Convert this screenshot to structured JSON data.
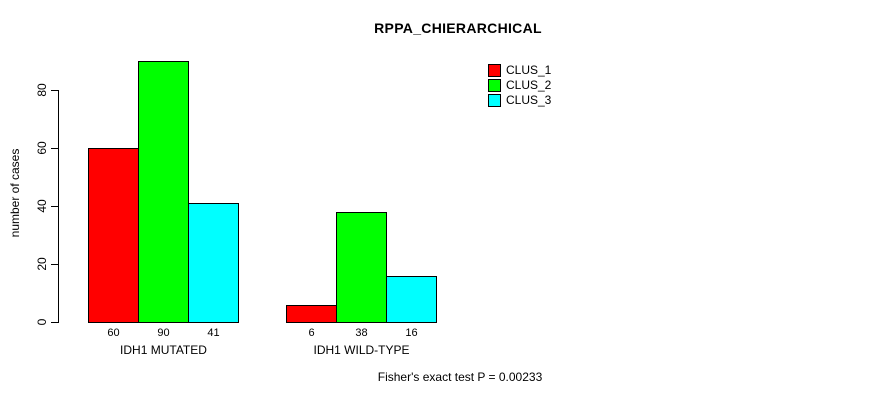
{
  "chart_data": {
    "type": "bar",
    "title": "RPPA_CHIERARCHICAL",
    "ylabel": "number of cases",
    "xlabel": "",
    "groups": [
      "IDH1 MUTATED",
      "IDH1 WILD-TYPE"
    ],
    "series": [
      {
        "name": "CLUS_1",
        "color": "#ff0000",
        "values": [
          60,
          6
        ]
      },
      {
        "name": "CLUS_2",
        "color": "#00ff00",
        "values": [
          90,
          38
        ]
      },
      {
        "name": "CLUS_3",
        "color": "#00ffff",
        "values": [
          41,
          16
        ]
      }
    ],
    "bar_value_labels_shown": true,
    "yticks": [
      0,
      20,
      40,
      60,
      80
    ],
    "ylim": [
      0,
      90
    ],
    "grid": false,
    "legend_position": "topright",
    "annotation": "Fisher's exact test P = 0.00233",
    "bar_border_color": "#000000",
    "background_color": "#ffffff"
  }
}
